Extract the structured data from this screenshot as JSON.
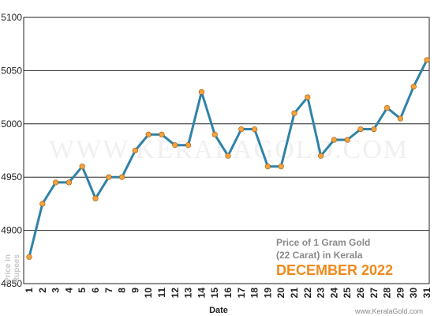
{
  "chart_data": {
    "type": "line",
    "title_line1": "Price of 1 Gram Gold",
    "title_line2": "(22 Carat) in Kerala",
    "month_label": "DECEMBER 2022",
    "xlabel": "Date",
    "ylabel_line1": "Price in",
    "ylabel_line2": "Rupees",
    "watermark": "WWW.KERALAGOLD.COM",
    "credit": "www.KeralaGold.com",
    "ylim": [
      4850,
      5100
    ],
    "yticks": [
      4850,
      4900,
      4950,
      5000,
      5050,
      5100
    ],
    "x": [
      1,
      2,
      3,
      4,
      5,
      6,
      7,
      8,
      9,
      10,
      11,
      12,
      13,
      14,
      15,
      16,
      17,
      18,
      19,
      20,
      21,
      22,
      23,
      24,
      25,
      26,
      27,
      28,
      29,
      30,
      31
    ],
    "values": [
      4875,
      4925,
      4945,
      4945,
      4960,
      4930,
      4950,
      4950,
      4975,
      4990,
      4990,
      4980,
      4980,
      5030,
      4990,
      4970,
      4995,
      4995,
      4960,
      4960,
      5010,
      5025,
      4970,
      4985,
      4985,
      4995,
      4995,
      5015,
      5005,
      5035,
      5060
    ],
    "line_color": "#2f82a8",
    "marker_color": "#f5a23a",
    "grid": true
  }
}
